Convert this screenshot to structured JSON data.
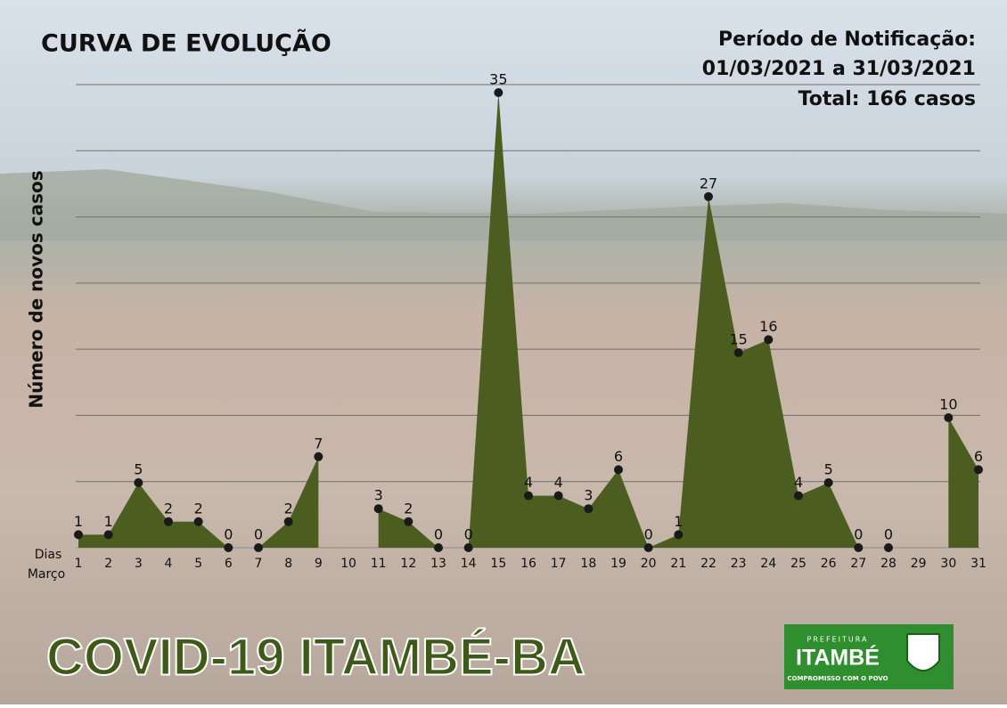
{
  "chart_data": {
    "type": "area",
    "title": "CURVA DE EVOLUÇÃO",
    "subtitle": [
      "Período de Notificação:",
      "01/03/2021 a 31/03/2021",
      "Total: 166 casos"
    ],
    "y_label": "Número de novos casos",
    "x_label": [
      "Dias",
      "Março"
    ],
    "categories": [
      "1",
      "2",
      "3",
      "4",
      "5",
      "6",
      "7",
      "8",
      "9",
      "10",
      "11",
      "12",
      "13",
      "14",
      "15",
      "16",
      "17",
      "18",
      "19",
      "20",
      "21",
      "22",
      "23",
      "24",
      "25",
      "26",
      "27",
      "28",
      "29",
      "30",
      "31"
    ],
    "values": [
      1,
      1,
      5,
      2,
      2,
      0,
      0,
      2,
      7,
      null,
      3,
      2,
      0,
      0,
      35,
      4,
      4,
      3,
      6,
      0,
      1,
      27,
      15,
      16,
      4,
      5,
      0,
      0,
      null,
      10,
      6
    ],
    "color": "#4b5e20",
    "ylim": [
      0,
      35
    ],
    "yticks": [
      5,
      10,
      15,
      20,
      25,
      30,
      35
    ],
    "grid": true
  },
  "banner": "COVID-19  ITAMBÉ-BA",
  "logo": {
    "top": "PREFEITURA",
    "name": "ITAMBÉ",
    "motto": "COMPROMISSO COM O POVO"
  }
}
